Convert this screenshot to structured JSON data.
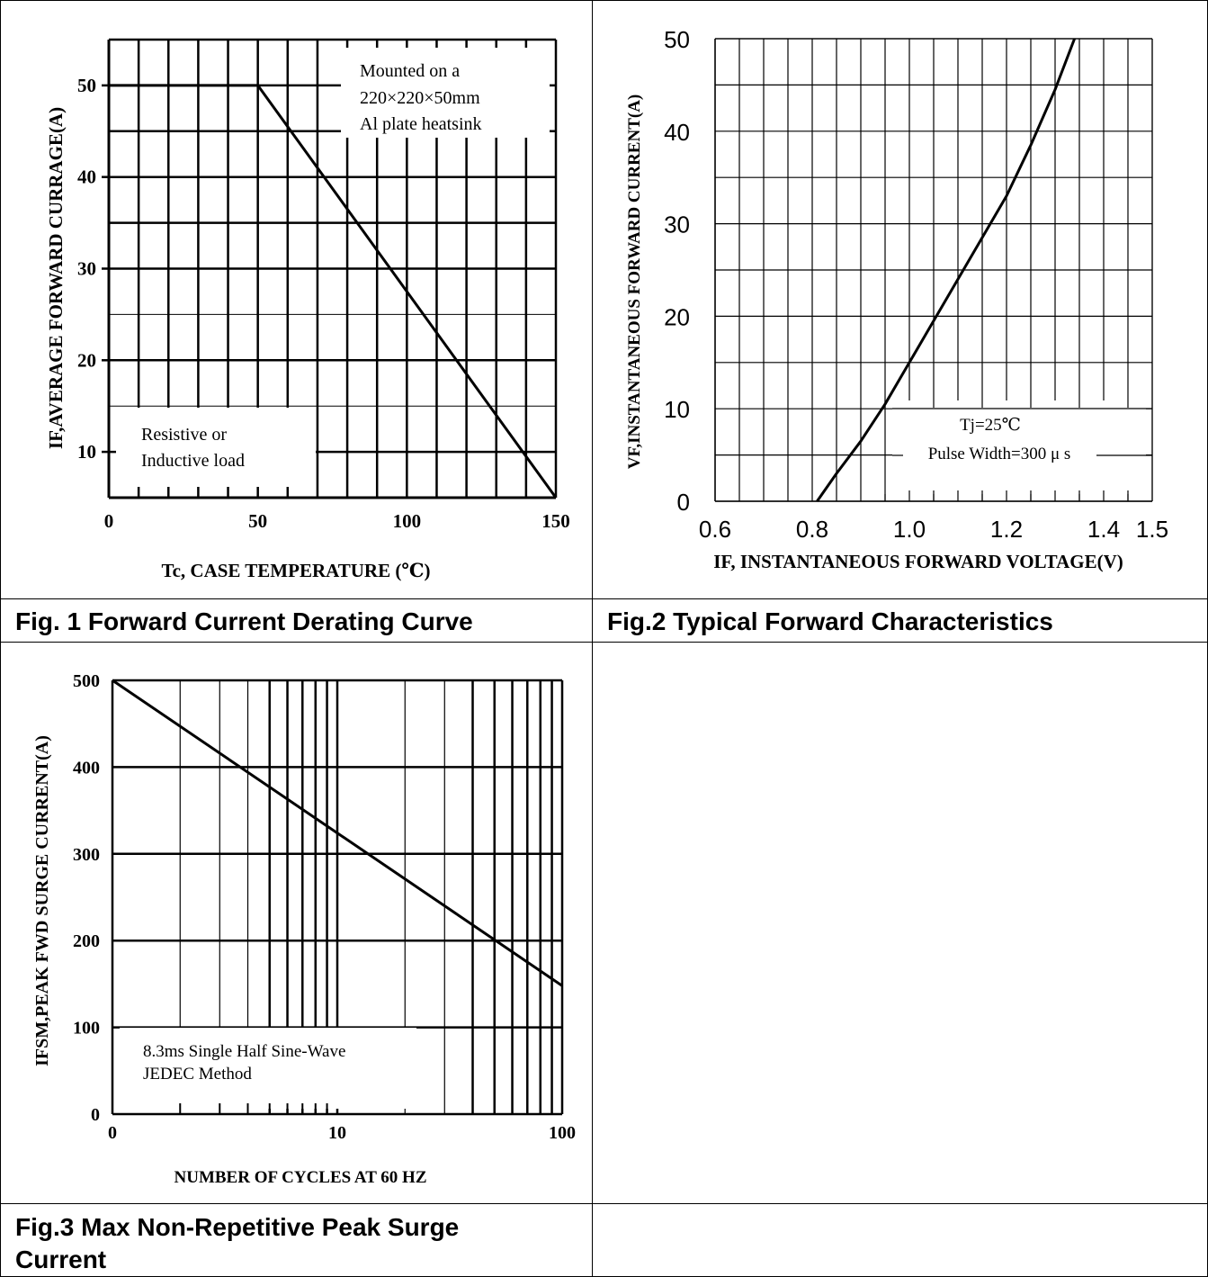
{
  "captions": {
    "fig1": "Fig. 1 Forward Current Derating Curve",
    "fig2": "Fig.2 Typical Forward Characteristics",
    "fig3_line1": "Fig.3 Max Non-Repetitive Peak Surge",
    "fig3_line2": "Current"
  },
  "chart_data": [
    {
      "type": "line",
      "title": "",
      "xlabel": "Tc, CASE    TEMPERATURE (℃)",
      "ylabel": "IF,AVERAGE  FORWARD CURRAGE(A)",
      "xlim": [
        0,
        150
      ],
      "ylim": [
        5,
        55
      ],
      "xticks": [
        "0",
        "50",
        "100",
        "150"
      ],
      "yticks": [
        "10",
        "20",
        "30",
        "40",
        "50"
      ],
      "annotations": [
        "Mounted on a",
        "220×220×50mm",
        "Al plate heatsink",
        "Resistive or",
        "Inductive load"
      ],
      "grid": true,
      "series": [
        {
          "x": [
            0,
            50,
            150
          ],
          "y": [
            50,
            50,
            5
          ]
        }
      ]
    },
    {
      "type": "line",
      "title": "",
      "xlabel": "IF,  INSTANTANEOUS  FORWARD  VOLTAGE(V)",
      "ylabel": "VF,INSTANTANEOUS FORWARD CURRENT(A)",
      "xlim": [
        0.6,
        1.5
      ],
      "ylim": [
        0,
        50
      ],
      "xticks": [
        "0.6",
        "0.8",
        "1.0",
        "1.2",
        "1.4",
        "1.5"
      ],
      "yticks": [
        "0",
        "10",
        "20",
        "30",
        "40",
        "50"
      ],
      "annotations": [
        "Tj=25℃",
        "Pulse Width=300 μ s"
      ],
      "grid": true,
      "series": [
        {
          "x": [
            0.81,
            0.85,
            0.9,
            0.95,
            1.0,
            1.05,
            1.1,
            1.15,
            1.2,
            1.25,
            1.3,
            1.34
          ],
          "y": [
            0,
            3,
            6.5,
            10.5,
            15,
            19.5,
            24,
            28.5,
            33,
            38.5,
            44.5,
            50
          ]
        }
      ]
    },
    {
      "type": "line",
      "title": "",
      "xlabel": "NUMBER OF CYCLES AT 60 HZ",
      "ylabel": "IFSM,PEAK  FWD  SURGE  CURRENT(A)",
      "xscale": "log",
      "xlim": [
        1,
        100
      ],
      "ylim": [
        0,
        500
      ],
      "xticks": [
        "0",
        "10",
        "100"
      ],
      "yticks": [
        "0",
        "100",
        "200",
        "300",
        "400",
        "500"
      ],
      "annotations": [
        "8.3ms Single Half Sine-Wave",
        "JEDEC Method"
      ],
      "grid": true,
      "series": [
        {
          "x": [
            1,
            100
          ],
          "y": [
            500,
            148
          ]
        }
      ]
    }
  ]
}
